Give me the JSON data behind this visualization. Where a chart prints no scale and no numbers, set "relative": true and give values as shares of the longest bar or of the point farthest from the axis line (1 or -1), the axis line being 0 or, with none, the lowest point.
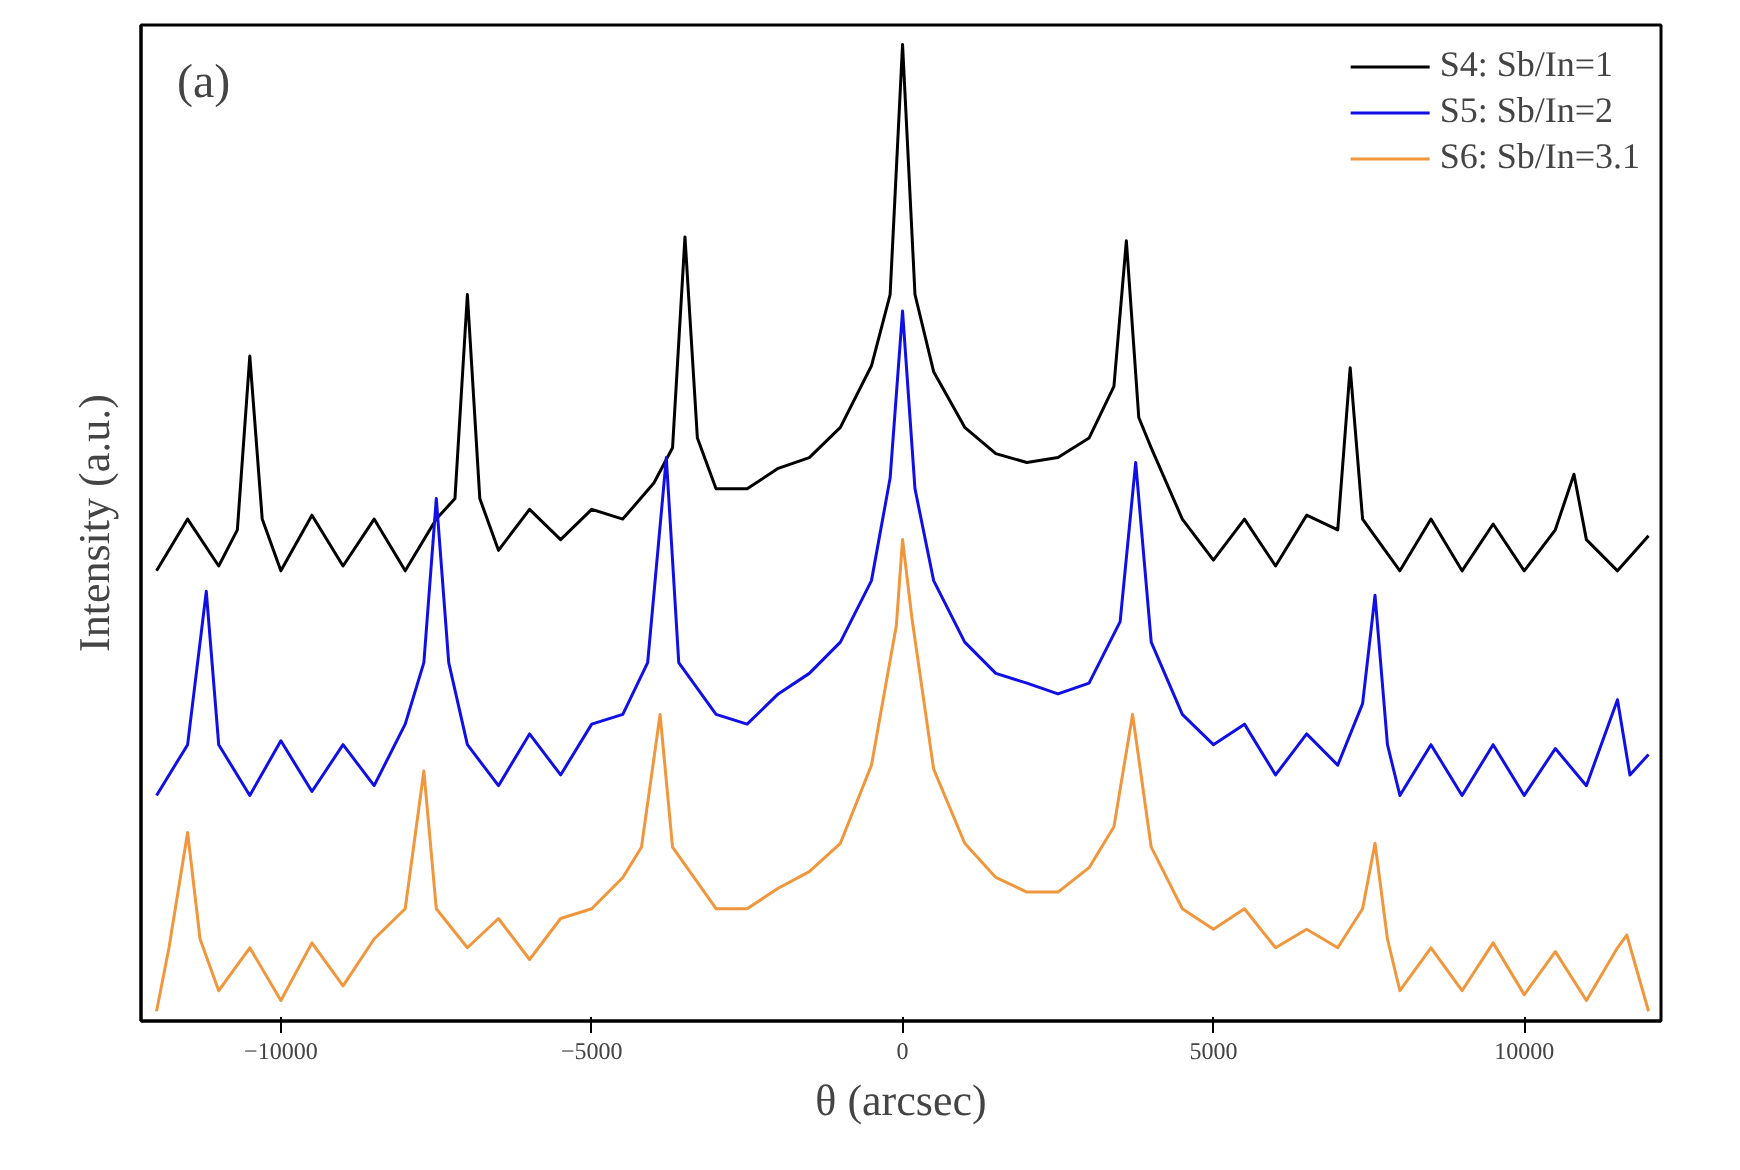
{
  "chart_data": {
    "type": "line",
    "relative": true,
    "xlabel": "θ (arcsec)",
    "ylabel": "Intensity (a.u.)",
    "annotations": [
      "(a)"
    ],
    "xlim": [
      -12250,
      12200
    ],
    "xticks": [
      -10000,
      -5000,
      0,
      5000,
      10000
    ],
    "tick_labels": "x",
    "grid": false,
    "legend": "top right",
    "marker": "none",
    "line_style": "solid",
    "series": [
      {
        "name": "S4: Sb/In=1",
        "color": "#000000",
        "x": [
          -12000,
          -11500,
          -11000,
          -10700,
          -10500,
          -10300,
          -10000,
          -9500,
          -9000,
          -8500,
          -8000,
          -7500,
          -7200,
          -7000,
          -6800,
          -6500,
          -6000,
          -5500,
          -5000,
          -4500,
          -4000,
          -3700,
          -3500,
          -3300,
          -3000,
          -2500,
          -2000,
          -1500,
          -1000,
          -500,
          -200,
          0,
          200,
          500,
          1000,
          1500,
          2000,
          2500,
          3000,
          3400,
          3600,
          3800,
          4000,
          4500,
          5000,
          5500,
          6000,
          6500,
          7000,
          7200,
          7400,
          8000,
          8500,
          9000,
          9500,
          10000,
          10500,
          10800,
          11000,
          11500,
          12000
        ],
        "values": [
          0.461,
          0.514,
          0.466,
          0.503,
          0.681,
          0.514,
          0.461,
          0.518,
          0.466,
          0.514,
          0.461,
          0.514,
          0.535,
          0.744,
          0.535,
          0.482,
          0.524,
          0.493,
          0.524,
          0.514,
          0.551,
          0.587,
          0.803,
          0.597,
          0.545,
          0.545,
          0.566,
          0.577,
          0.608,
          0.671,
          0.744,
          1,
          0.744,
          0.665,
          0.608,
          0.581,
          0.572,
          0.577,
          0.597,
          0.65,
          0.799,
          0.618,
          0.587,
          0.514,
          0.472,
          0.514,
          0.466,
          0.518,
          0.503,
          0.669,
          0.514,
          0.461,
          0.514,
          0.461,
          0.509,
          0.461,
          0.503,
          0.56,
          0.493,
          0.461,
          0.497
        ]
      },
      {
        "name": "S5: Sb/In=2",
        "color": "#1010e6",
        "x": [
          -12000,
          -11500,
          -11200,
          -11000,
          -10500,
          -10000,
          -9500,
          -9000,
          -8500,
          -8000,
          -7700,
          -7500,
          -7300,
          -7000,
          -6500,
          -6000,
          -5500,
          -5000,
          -4500,
          -4100,
          -3800,
          -3600,
          -3000,
          -2500,
          -2000,
          -1500,
          -1000,
          -500,
          -200,
          0,
          200,
          500,
          1000,
          1500,
          2000,
          2500,
          3000,
          3500,
          3750,
          4000,
          4500,
          5000,
          5500,
          6000,
          6500,
          7000,
          7400,
          7600,
          7800,
          8000,
          8500,
          9000,
          9500,
          10000,
          10500,
          11000,
          11500,
          11700,
          12000
        ],
        "values": [
          0.231,
          0.283,
          0.44,
          0.283,
          0.231,
          0.287,
          0.235,
          0.283,
          0.241,
          0.304,
          0.367,
          0.535,
          0.367,
          0.283,
          0.241,
          0.294,
          0.252,
          0.304,
          0.314,
          0.367,
          0.577,
          0.367,
          0.314,
          0.304,
          0.335,
          0.356,
          0.388,
          0.451,
          0.556,
          0.727,
          0.545,
          0.451,
          0.388,
          0.356,
          0.346,
          0.335,
          0.346,
          0.409,
          0.572,
          0.388,
          0.314,
          0.283,
          0.304,
          0.252,
          0.294,
          0.262,
          0.325,
          0.436,
          0.283,
          0.231,
          0.283,
          0.231,
          0.283,
          0.231,
          0.279,
          0.241,
          0.329,
          0.252,
          0.273
        ]
      },
      {
        "name": "S6: Sb/In=3.1",
        "color": "#f0963c",
        "x": [
          -12000,
          -11800,
          -11500,
          -11300,
          -11000,
          -10500,
          -10000,
          -9500,
          -9000,
          -8500,
          -8000,
          -7700,
          -7500,
          -7000,
          -6500,
          -6000,
          -5500,
          -5000,
          -4500,
          -4200,
          -3900,
          -3700,
          -3000,
          -2500,
          -2000,
          -1500,
          -1000,
          -500,
          -100,
          0,
          150,
          500,
          1000,
          1500,
          2000,
          2500,
          3000,
          3400,
          3700,
          4000,
          4500,
          5000,
          5500,
          6000,
          6500,
          7000,
          7400,
          7600,
          7800,
          8000,
          8500,
          9000,
          9500,
          10000,
          10500,
          11000,
          11500,
          11650,
          12000
        ],
        "values": [
          0.01,
          0.075,
          0.193,
          0.084,
          0.031,
          0.075,
          0.021,
          0.08,
          0.036,
          0.084,
          0.115,
          0.256,
          0.115,
          0.075,
          0.105,
          0.063,
          0.105,
          0.115,
          0.147,
          0.178,
          0.314,
          0.178,
          0.115,
          0.115,
          0.136,
          0.153,
          0.182,
          0.262,
          0.405,
          0.493,
          0.413,
          0.258,
          0.182,
          0.147,
          0.132,
          0.132,
          0.157,
          0.199,
          0.314,
          0.178,
          0.115,
          0.094,
          0.115,
          0.075,
          0.094,
          0.075,
          0.115,
          0.182,
          0.084,
          0.031,
          0.075,
          0.031,
          0.08,
          0.027,
          0.071,
          0.021,
          0.075,
          0.088,
          0.01
        ]
      }
    ]
  }
}
